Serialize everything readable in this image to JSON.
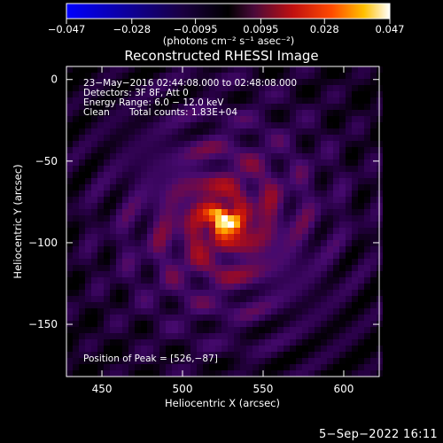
{
  "chart_data": {
    "type": "heatmap",
    "title": "Reconstructed RHESSI Image",
    "xlabel": "Heliocentric X (arcsec)",
    "ylabel": "Heliocentric Y (arcsec)",
    "xlim": [
      428,
      622
    ],
    "ylim": [
      -182,
      8
    ],
    "x_ticks": [
      450,
      500,
      550,
      600
    ],
    "x_tick_labels": [
      "450",
      "500",
      "550",
      "600"
    ],
    "y_ticks": [
      0,
      -50,
      -100,
      -150
    ],
    "y_tick_labels": [
      "0",
      "−50",
      "−100",
      "−150"
    ],
    "colorbar": {
      "colormap": "black-purple-red-yellow-white",
      "range": [
        -0.047,
        0.047
      ],
      "tick_values": [
        -0.047,
        -0.028,
        -0.0095,
        0.0095,
        0.028,
        0.047
      ],
      "tick_labels": [
        "−0.047",
        "−0.028",
        "−0.0095",
        "0.0095",
        "0.028",
        "0.047"
      ],
      "unit_label": "(photons cm⁻² s⁻¹ asec⁻²)",
      "color_stops": [
        "#0000ff",
        "#000010",
        "#3a0a7a",
        "#b01010",
        "#ff3000",
        "#ffb000",
        "#ffffff"
      ]
    },
    "annotations": {
      "time_range": "23−May−2016 02:44:08.000 to 02:48:08.000",
      "detectors": "Detectors: 3F 8F, Att 0",
      "energy": "Energy Range: 6.0 − 12.0 keV",
      "method": "Clean",
      "counts": "Total counts: 1.83E+04",
      "peak": "Position of Peak = [526,−87]"
    },
    "peak": {
      "x": 526,
      "y": -87
    },
    "source": {
      "center_x": 526,
      "center_y": -87
    }
  },
  "footer": {
    "date": "5−Sep−2022 16:11"
  }
}
